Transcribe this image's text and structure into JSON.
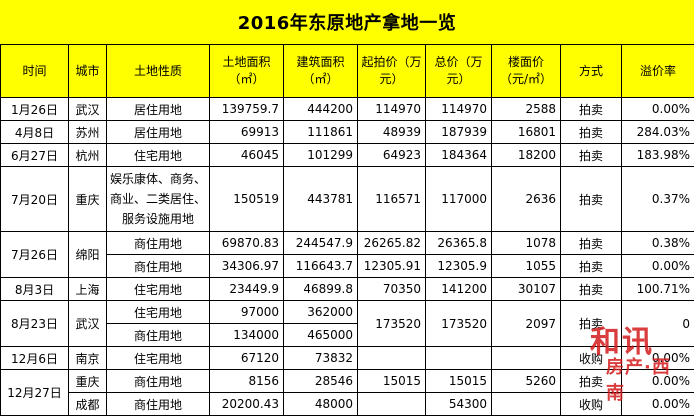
{
  "title": "2016年东原地产拿地一览",
  "headers": {
    "time": "时间",
    "city": "城市",
    "land_type": "土地性质",
    "land_area": "土地面积（㎡）",
    "build_area": "建筑面积（㎡）",
    "start_price": "起拍价（万元）",
    "total_price": "总价（万元）",
    "floor_price": "楼面价（元/㎡）",
    "method": "方式",
    "premium": "溢价率"
  },
  "rows": {
    "r1": {
      "time": "1月26日",
      "city": "武汉",
      "type": "居住用地",
      "land": "139759.7",
      "build": "444200",
      "start": "114970",
      "total": "114970",
      "floor": "2588",
      "method": "拍卖",
      "premium": "0.00%"
    },
    "r2": {
      "time": "4月8日",
      "city": "苏州",
      "type": "居住用地",
      "land": "69913",
      "build": "111861",
      "start": "48939",
      "total": "187939",
      "floor": "16801",
      "method": "拍卖",
      "premium": "284.03%"
    },
    "r3": {
      "time": "6月27日",
      "city": "杭州",
      "type": "住宅用地",
      "land": "46045",
      "build": "101299",
      "start": "64923",
      "total": "184364",
      "floor": "18200",
      "method": "拍卖",
      "premium": "183.98%"
    },
    "r4": {
      "time": "7月20日",
      "city": "重庆",
      "type": "娱乐康体、商务、商业、二类居住、服务设施用地",
      "land": "150519",
      "build": "443781",
      "start": "116571",
      "total": "117000",
      "floor": "2636",
      "method": "拍卖",
      "premium": "0.37%"
    },
    "r5": {
      "time": "7月26日",
      "city": "绵阳",
      "type": "商住用地",
      "land": "69870.83",
      "build": "244547.9",
      "start": "26265.82",
      "total": "26365.8",
      "floor": "1078",
      "method": "拍卖",
      "premium": "0.38%"
    },
    "r6": {
      "type": "商住用地",
      "land": "34306.97",
      "build": "116643.7",
      "start": "12305.91",
      "total": "12305.9",
      "floor": "1055",
      "method": "拍卖",
      "premium": "0.00%"
    },
    "r7": {
      "time": "8月3日",
      "city": "上海",
      "type": "住宅用地",
      "land": "23449.9",
      "build": "46899.8",
      "start": "70350",
      "total": "141200",
      "floor": "30107",
      "method": "拍卖",
      "premium": "100.71%"
    },
    "r8": {
      "time": "8月23日",
      "city": "武汉",
      "type": "住宅用地",
      "land": "97000",
      "build": "362000",
      "start": "173520",
      "total": "173520",
      "floor": "2097",
      "method": "拍卖",
      "premium": "0"
    },
    "r9": {
      "type": "商住用地",
      "land": "134000",
      "build": "465000"
    },
    "r10": {
      "time": "12月6日",
      "city": "南京",
      "type": "住宅用地",
      "land": "67120",
      "build": "73832",
      "start": "",
      "total": "",
      "floor": "",
      "method": "收购",
      "premium": "0.00%"
    },
    "r11": {
      "time": "12月27日",
      "city": "重庆",
      "type": "商住用地",
      "land": "8156",
      "build": "28546",
      "start": "15015",
      "total": "15015",
      "floor": "5260",
      "method": "拍卖",
      "premium": "0.00%"
    },
    "r12": {
      "city": "成都",
      "type": "商住用地",
      "land": "20200.43",
      "build": "48000",
      "start": "",
      "total": "54300",
      "floor": "",
      "method": "收购",
      "premium": "0.00%"
    }
  },
  "watermark": {
    "logo": "和讯",
    "sub": "房产·西南",
    "site": "house.hexun.com"
  },
  "colors": {
    "header_bg": "#ffff00",
    "border": "#000000",
    "watermark": "#d41c1c"
  }
}
